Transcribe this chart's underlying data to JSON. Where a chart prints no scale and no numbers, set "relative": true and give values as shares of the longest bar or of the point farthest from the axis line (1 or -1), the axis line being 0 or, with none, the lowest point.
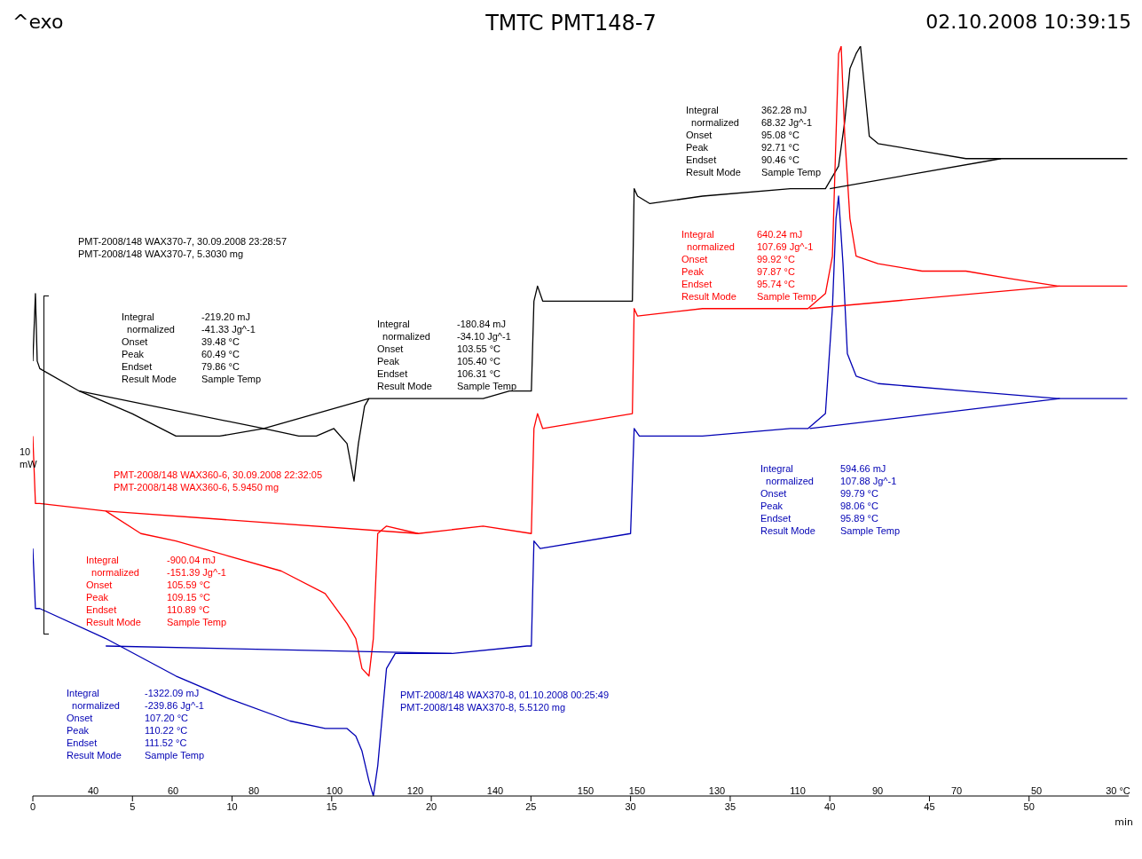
{
  "chart_data": {
    "type": "line",
    "title": "TMTC PMT148-7",
    "xlabel": "min",
    "relative": true,
    "xlim": [
      0,
      55
    ],
    "xticks": [
      0,
      5,
      10,
      15,
      20,
      25,
      30,
      35,
      40,
      45,
      50
    ],
    "series": [
      {
        "color": "#000000",
        "x": [
          0,
          0.13,
          0.22,
          0.35,
          2.33,
          4.98,
          7.18,
          9.38,
          11.59,
          13.35,
          14.23,
          15.11,
          15.77,
          16.12,
          16.34,
          16.65,
          16.87,
          20.4,
          22.6,
          23.92,
          25.02,
          25.15,
          25.33,
          25.59,
          30.09,
          30.18,
          30.35,
          30.97,
          33.61,
          38.02,
          39.78,
          40.44,
          40.75,
          41.01,
          41.32,
          41.54,
          41.76,
          41.98,
          42.42,
          44.63,
          46.83,
          49.03,
          51.23,
          54.93
        ],
        "values": [
          0.58,
          0.67,
          0.58,
          0.57,
          0.54,
          0.51,
          0.48,
          0.48,
          0.49,
          0.48,
          0.48,
          0.49,
          0.47,
          0.42,
          0.47,
          0.52,
          0.53,
          0.53,
          0.53,
          0.54,
          0.54,
          0.66,
          0.68,
          0.66,
          0.66,
          0.81,
          0.8,
          0.79,
          0.8,
          0.81,
          0.81,
          0.84,
          0.9,
          0.97,
          0.99,
          1.0,
          0.94,
          0.88,
          0.87,
          0.86,
          0.85,
          0.85,
          0.85,
          0.85
        ]
      },
      {
        "color": "#ff0000",
        "x": [
          0,
          0.13,
          0.35,
          3.66,
          5.42,
          7.18,
          9.82,
          12.47,
          14.67,
          15.77,
          16.21,
          16.52,
          16.87,
          17.09,
          17.31,
          17.75,
          19.34,
          22.6,
          25.02,
          25.15,
          25.33,
          25.59,
          30.09,
          30.18,
          30.35,
          33.61,
          38.9,
          39.78,
          40.13,
          40.31,
          40.44,
          40.57,
          40.75,
          41.01,
          41.32,
          42.42,
          44.63,
          46.83,
          49.03,
          51.45,
          54.93
        ],
        "values": [
          0.48,
          0.39,
          0.39,
          0.38,
          0.35,
          0.34,
          0.32,
          0.3,
          0.27,
          0.23,
          0.21,
          0.17,
          0.16,
          0.21,
          0.35,
          0.36,
          0.35,
          0.36,
          0.35,
          0.49,
          0.51,
          0.49,
          0.51,
          0.65,
          0.64,
          0.65,
          0.65,
          0.67,
          0.72,
          0.88,
          0.99,
          1.0,
          0.88,
          0.77,
          0.72,
          0.71,
          0.7,
          0.7,
          0.69,
          0.68,
          0.68
        ]
      },
      {
        "color": "#0000b4",
        "x": [
          0,
          0.13,
          0.35,
          3.66,
          7.18,
          9.82,
          12.91,
          14.67,
          15.77,
          16.21,
          16.52,
          16.87,
          17.09,
          17.31,
          17.75,
          18.19,
          21.06,
          24.8,
          25.02,
          25.15,
          25.46,
          30.0,
          30.18,
          30.44,
          33.61,
          38.02,
          38.9,
          39.78,
          40.13,
          40.31,
          40.44,
          40.66,
          40.88,
          41.32,
          42.42,
          46.83,
          51.45,
          54.93
        ],
        "values": [
          0.33,
          0.25,
          0.25,
          0.21,
          0.16,
          0.13,
          0.1,
          0.09,
          0.09,
          0.08,
          0.06,
          0.02,
          0,
          0.04,
          0.17,
          0.19,
          0.19,
          0.2,
          0.2,
          0.34,
          0.33,
          0.35,
          0.49,
          0.48,
          0.48,
          0.49,
          0.49,
          0.51,
          0.65,
          0.77,
          0.8,
          0.71,
          0.59,
          0.56,
          0.55,
          0.54,
          0.53,
          0.53
        ]
      },
      {
        "color": "#000000",
        "x": [
          2.33,
          11.59
        ],
        "values": [
          0.54,
          0.49
        ]
      },
      {
        "color": "#000000",
        "x": [
          11.59,
          16.87
        ],
        "values": [
          0.49,
          0.53
        ]
      },
      {
        "color": "#ff0000",
        "x": [
          3.66,
          19.34
        ],
        "values": [
          0.38,
          0.35
        ]
      },
      {
        "color": "#0000b4",
        "x": [
          3.66,
          21.06
        ],
        "values": [
          0.2,
          0.19
        ]
      },
      {
        "color": "#000000",
        "x": [
          40.0,
          48.59
        ],
        "values": [
          0.81,
          0.85
        ]
      },
      {
        "color": "#ff0000",
        "x": [
          38.99,
          51.54
        ],
        "values": [
          0.65,
          0.68
        ]
      },
      {
        "color": "#0000b4",
        "x": [
          38.99,
          51.54
        ],
        "values": [
          0.49,
          0.53
        ]
      }
    ],
    "annotations": [
      "^exo",
      "02.10.2008 10:39:15",
      "PMT-2008/148 WAX370-7, 30.09.2008 23:28:57\nPMT-2008/148 WAX370-7, 5.3030 mg",
      "PMT-2008/148 WAX360-6, 30.09.2008 22:32:05\nPMT-2008/148 WAX360-6, 5.9450 mg",
      "PMT-2008/148 WAX370-8, 01.10.2008 00:25:49\nPMT-2008/148 WAX370-8, 5.5120 mg",
      "Integral\n  normalized\nOnset\nPeak\nEndset\nResult Mode",
      "-219.20 mJ\n-41.33 Jg^-1\n39.48 °C\n60.49 °C\n79.86 °C\nSample Temp",
      "Integral\n  normalized\nOnset\nPeak\nEndset\nResult Mode",
      "-180.84 mJ\n-34.10 Jg^-1\n103.55 °C\n105.40 °C\n106.31 °C\nSample Temp",
      "Integral\n  normalized\nOnset\nPeak\nEndset\nResult Mode",
      "362.28 mJ\n68.32 Jg^-1\n95.08 °C\n92.71 °C\n90.46 °C\nSample Temp",
      "Integral\n  normalized\nOnset\nPeak\nEndset\nResult Mode",
      "-900.04 mJ\n-151.39 Jg^-1\n105.59 °C\n109.15 °C\n110.89 °C\nSample Temp",
      "Integral\n  normalized\nOnset\nPeak\nEndset\nResult Mode",
      "640.24 mJ\n107.69 Jg^-1\n99.92 °C\n97.87 °C\n95.74 °C\nSample Temp",
      "Integral\n  normalized\nOnset\nPeak\nEndset\nResult Mode",
      "-1322.09 mJ\n-239.86 Jg^-1\n107.20 °C\n110.22 °C\n111.52 °C\nSample Temp",
      "Integral\n  normalized\nOnset\nPeak\nEndset\nResult Mode",
      "594.66 mJ\n107.88 Jg^-1\n99.79 °C\n98.06 °C\n95.89 °C\nSample Temp",
      "10\nmW",
      "40",
      "60",
      "80",
      "100",
      "120",
      "140",
      "150",
      "150",
      "130",
      "110",
      "90",
      "70",
      "50",
      "30 °C"
    ]
  }
}
